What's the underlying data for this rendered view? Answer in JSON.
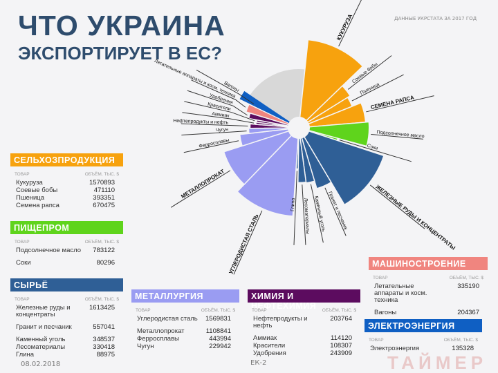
{
  "title": {
    "line1": "ЧТО УКРАИНА",
    "line2": "ЭКСПОРТИРУЕТ В ЕС?"
  },
  "source_note": "ДАННЫЕ УКРСТАТА ЗА 2017 ГОД",
  "footer": {
    "date": "08.02.2018",
    "slide_label": "ЕК-2",
    "watermark": "ТАЙМЕР"
  },
  "colors": {
    "agri": "#f7a20e",
    "food": "#5fd41c",
    "raw": "#2f5f96",
    "metal": "#9a9cf2",
    "chem": "#5c0c5f",
    "machine": "#f0857f",
    "energy": "#0f5fc3",
    "other": "#d8d8d8"
  },
  "sections": [
    {
      "key": "agri",
      "title": "СЕЛЬХОЗПРОДУКЦИЯ",
      "col1": "ТОВАР",
      "col2": "ОБЪЁМ, ТЫС. $",
      "rows": [
        {
          "name": "Кукуруза",
          "value": "1570893"
        },
        {
          "name": "Соевые бобы",
          "value": "471110"
        },
        {
          "name": "Пшеница",
          "value": "393351"
        },
        {
          "name": "Семена рапса",
          "value": "670475"
        }
      ]
    },
    {
      "key": "food",
      "title": "ПИЩЕПРОМ",
      "col1": "ТОВАР",
      "col2": "ОБЪЁМ, ТЫС. $",
      "rows": [
        {
          "name": "Подсолнечное масло",
          "value": "783122"
        },
        {
          "name": "Соки",
          "value": "80296"
        }
      ]
    },
    {
      "key": "raw",
      "title": "СЫРЬЁ",
      "col1": "ТОВАР",
      "col2": "ОБЪЁМ, ТЫС. $",
      "rows": [
        {
          "name": "Железные руды и концентраты",
          "value": "1613425"
        },
        {
          "name": "Гранит и песчаник",
          "value": "557041"
        },
        {
          "name": "Каменный уголь",
          "value": "348537"
        },
        {
          "name": "Лесоматериалы",
          "value": "330418"
        },
        {
          "name": "Глина",
          "value": "88975"
        }
      ]
    },
    {
      "key": "metal",
      "title": "МЕТАЛЛУРГИЯ",
      "col1": "ТОВАР",
      "col2": "ОБЪЁМ, ТЫС. $",
      "rows": [
        {
          "name": "Углеродистая сталь",
          "value": "1569831"
        },
        {
          "name": "Металлопрокат",
          "value": "1108841"
        },
        {
          "name": "Ферросплавы",
          "value": "443994"
        },
        {
          "name": "Чугун",
          "value": "229942"
        }
      ]
    },
    {
      "key": "chem",
      "title": "ХИМИЯ И НЕФТЕХИМИЯ",
      "col1": "ТОВАР",
      "col2": "ОБЪЁМ, ТЫС. $",
      "rows": [
        {
          "name": "Нефтепродукты и нефть",
          "value": "203764"
        },
        {
          "name": "Аммиак",
          "value": "114120"
        },
        {
          "name": "Красители",
          "value": "108307"
        },
        {
          "name": "Удобрения",
          "value": "243909"
        }
      ]
    },
    {
      "key": "machine",
      "title": "МАШИНОСТРОЕНИЕ",
      "col1": "ТОВАР",
      "col2": "ОБЪЁМ, ТЫС. $",
      "rows": [
        {
          "name": "Летательные аппараты и косм. техника",
          "value": "335190"
        },
        {
          "name": "Вагоны",
          "value": "204367"
        }
      ]
    },
    {
      "key": "energy",
      "title": "ЭЛЕКТРОЭНЕРГИЯ",
      "col1": "ТОВАР",
      "col2": "ОБЪЁМ, ТЫС. $",
      "rows": [
        {
          "name": "Электроэнергия",
          "value": "135328"
        }
      ]
    }
  ],
  "chart_data": {
    "type": "radial-bar",
    "unit": "тыс. $",
    "segments": [
      {
        "label": "КУКУРУЗА",
        "value": 1570893,
        "group": "agri",
        "bold": true
      },
      {
        "label": "Соевые бобы",
        "value": 471110,
        "group": "agri"
      },
      {
        "label": "Пшеница",
        "value": 393351,
        "group": "agri"
      },
      {
        "label": "СЕМЕНА РАПСА",
        "value": 670475,
        "group": "agri",
        "bold": true
      },
      {
        "label": "Подсолнечное масло",
        "value": 783122,
        "group": "food"
      },
      {
        "label": "Соки",
        "value": 80296,
        "group": "food"
      },
      {
        "label": "ЖЕЛЕЗНЫЕ РУДЫ И КОНЦЕНТРАТЫ",
        "value": 1613425,
        "group": "raw",
        "bold": true
      },
      {
        "label": "Гранит и песчаник",
        "value": 557041,
        "group": "raw"
      },
      {
        "label": "Каменный уголь",
        "value": 348537,
        "group": "raw"
      },
      {
        "label": "Лесоматериалы",
        "value": 330418,
        "group": "raw"
      },
      {
        "label": "Глина",
        "value": 88975,
        "group": "raw"
      },
      {
        "label": "УГЛЕРОДИСТАЯ СТАЛЬ",
        "value": 1569831,
        "group": "metal",
        "bold": true
      },
      {
        "label": "МЕТАЛЛОПРОКАТ",
        "value": 1108841,
        "group": "metal",
        "bold": true
      },
      {
        "label": "Ферросплавы",
        "value": 443994,
        "group": "metal"
      },
      {
        "label": "Чугун",
        "value": 229942,
        "group": "metal"
      },
      {
        "label": "Нефтепродукты и нефть",
        "value": 203764,
        "group": "chem"
      },
      {
        "label": "Аммиак",
        "value": 114120,
        "group": "chem"
      },
      {
        "label": "Красители",
        "value": 108307,
        "group": "chem"
      },
      {
        "label": "Удобрения",
        "value": 243909,
        "group": "chem"
      },
      {
        "label": "Летательные аппараты и косм. техника",
        "value": 335190,
        "group": "machine"
      },
      {
        "label": "Вагоны",
        "value": 204367,
        "group": "machine"
      },
      {
        "label": "",
        "value": 135328,
        "group": "energy"
      }
    ]
  }
}
